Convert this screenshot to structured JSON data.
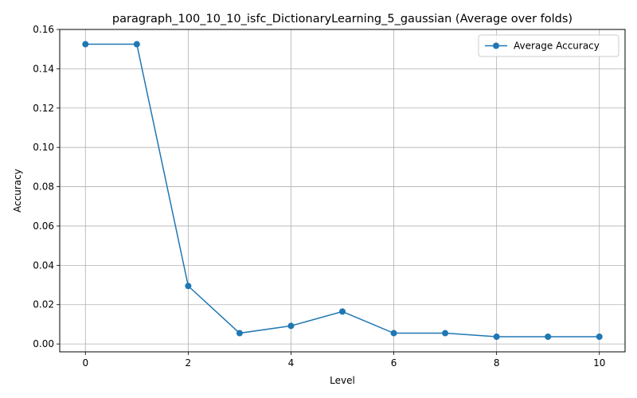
{
  "chart_data": {
    "type": "line",
    "title": "paragraph_100_10_10_isfc_DictionaryLearning_5_gaussian (Average over folds)",
    "xlabel": "Level",
    "ylabel": "Accuracy",
    "x": [
      0,
      1,
      2,
      3,
      4,
      5,
      6,
      7,
      8,
      9,
      10
    ],
    "series": [
      {
        "name": "Average Accuracy",
        "values": [
          0.1525,
          0.1525,
          0.0295,
          0.0055,
          0.0092,
          0.0165,
          0.0055,
          0.0055,
          0.0037,
          0.0037,
          0.0037
        ],
        "color": "#1f77b4"
      }
    ],
    "xlim": [
      -0.5,
      10.5
    ],
    "ylim": [
      -0.004,
      0.16
    ],
    "xticks": [
      0,
      2,
      4,
      6,
      8,
      10
    ],
    "xtick_labels": [
      "0",
      "2",
      "4",
      "6",
      "8",
      "10"
    ],
    "yticks": [
      0.0,
      0.02,
      0.04,
      0.06,
      0.08,
      0.1,
      0.12,
      0.14,
      0.16
    ],
    "ytick_labels": [
      "0.00",
      "0.02",
      "0.04",
      "0.06",
      "0.08",
      "0.10",
      "0.12",
      "0.14",
      "0.16"
    ],
    "grid": true,
    "legend_position": "top-right"
  }
}
